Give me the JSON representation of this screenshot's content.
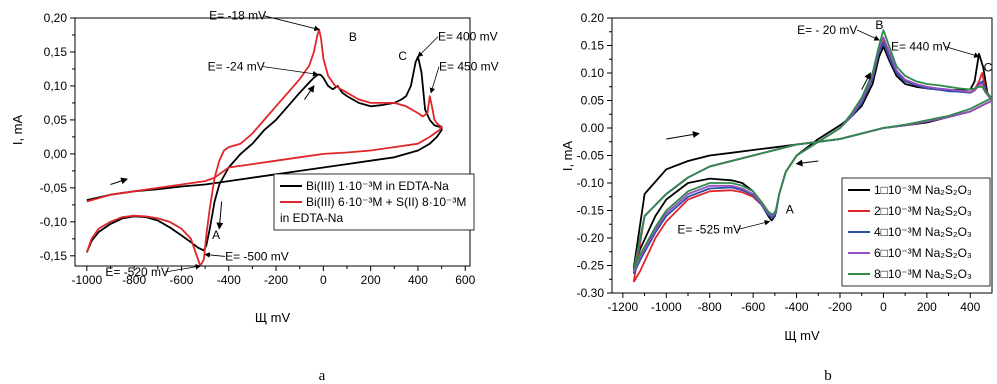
{
  "captions": [
    "a",
    "b"
  ],
  "chart_data": [
    {
      "type": "line",
      "xlabel": "Щ mV",
      "ylabel": "I, mA",
      "xlim": [
        -1050,
        620
      ],
      "ylim": [
        -0.165,
        0.2
      ],
      "xticks": [
        "-1000",
        "-800",
        "-600",
        "-400",
        "-200",
        "0",
        "200",
        "400",
        "600"
      ],
      "yticks": [
        "-0,15",
        "-0,10",
        "-0,05",
        "0,00",
        "0,05",
        "0,10",
        "0,15",
        "0,20"
      ],
      "legend_position": "lower-right",
      "legend": [
        {
          "text": "Bi(III) 1·10⁻³M in EDTA-Na",
          "color": "#000000"
        },
        {
          "text": "Bi(III) 6·10⁻³M + S(II) 8·10⁻³M",
          "text2": "in EDTA-Na",
          "color": "#e0262b"
        }
      ],
      "annotations": [
        {
          "text": "E= -18 mV",
          "x": -18,
          "y": 0.183
        },
        {
          "text": "B",
          "x": 40,
          "y": 0.178
        },
        {
          "text": "E= -24 mV",
          "x": -24,
          "y": 0.117
        },
        {
          "text": "E= 400 mV",
          "x": 400,
          "y": 0.143
        },
        {
          "text": "C",
          "x": 368,
          "y": 0.138
        },
        {
          "text": "E= 450 mV",
          "x": 455,
          "y": 0.09
        },
        {
          "text": "A",
          "x": -470,
          "y": -0.125
        },
        {
          "text": "E= -520 mV",
          "x": -520,
          "y": -0.165
        },
        {
          "text": "E= -500 mV",
          "x": -500,
          "y": -0.148
        }
      ],
      "series": [
        {
          "color": "#000000",
          "x": [
            -1000,
            -980,
            -950,
            -900,
            -850,
            -800,
            -750,
            -700,
            -650,
            -600,
            -560,
            -530,
            -505,
            -495,
            -480,
            -460,
            -440,
            -400,
            -350,
            -300,
            -250,
            -200,
            -150,
            -100,
            -60,
            -40,
            -30,
            -20,
            -10,
            0,
            20,
            40,
            60,
            80,
            100,
            150,
            200,
            250,
            300,
            330,
            350,
            370,
            390,
            400,
            415,
            430,
            450,
            470,
            490,
            500,
            500,
            480,
            450,
            400,
            300,
            200,
            100,
            0,
            -100,
            -200,
            -300,
            -400,
            -500,
            -600,
            -700,
            -800,
            -900,
            -1000
          ],
          "y": [
            -0.145,
            -0.128,
            -0.115,
            -0.103,
            -0.095,
            -0.092,
            -0.093,
            -0.098,
            -0.108,
            -0.12,
            -0.13,
            -0.138,
            -0.142,
            -0.135,
            -0.11,
            -0.07,
            -0.045,
            -0.02,
            0,
            0.015,
            0.035,
            0.05,
            0.07,
            0.09,
            0.105,
            0.112,
            0.115,
            0.117,
            0.116,
            0.112,
            0.1,
            0.095,
            0.1,
            0.09,
            0.085,
            0.075,
            0.07,
            0.072,
            0.075,
            0.08,
            0.085,
            0.1,
            0.135,
            0.143,
            0.12,
            0.065,
            0.05,
            0.042,
            0.04,
            0.04,
            0.035,
            0.025,
            0.015,
            0.005,
            -0.005,
            -0.01,
            -0.015,
            -0.02,
            -0.025,
            -0.03,
            -0.035,
            -0.04,
            -0.045,
            -0.048,
            -0.052,
            -0.055,
            -0.06,
            -0.068
          ]
        },
        {
          "color": "#e0262b",
          "x": [
            -1000,
            -980,
            -950,
            -900,
            -850,
            -800,
            -750,
            -700,
            -650,
            -600,
            -560,
            -540,
            -520,
            -505,
            -495,
            -480,
            -460,
            -440,
            -420,
            -400,
            -350,
            -300,
            -250,
            -200,
            -150,
            -100,
            -60,
            -40,
            -25,
            -18,
            -10,
            0,
            20,
            50,
            100,
            150,
            200,
            250,
            300,
            350,
            400,
            420,
            440,
            450,
            460,
            470,
            480,
            490,
            500,
            490,
            470,
            450,
            400,
            300,
            200,
            100,
            0,
            -100,
            -200,
            -300,
            -400,
            -440,
            -460,
            -500,
            -600,
            -700,
            -800,
            -900,
            -1000
          ],
          "y": [
            -0.145,
            -0.125,
            -0.11,
            -0.1,
            -0.093,
            -0.091,
            -0.092,
            -0.095,
            -0.1,
            -0.11,
            -0.125,
            -0.145,
            -0.165,
            -0.155,
            -0.12,
            -0.08,
            -0.035,
            -0.01,
            0.005,
            0.01,
            0.015,
            0.03,
            0.05,
            0.07,
            0.09,
            0.11,
            0.13,
            0.15,
            0.175,
            0.183,
            0.17,
            0.14,
            0.115,
            0.1,
            0.09,
            0.08,
            0.075,
            0.075,
            0.075,
            0.07,
            0.06,
            0.055,
            0.06,
            0.085,
            0.068,
            0.05,
            0.045,
            0.042,
            0.04,
            0.035,
            0.03,
            0.025,
            0.015,
            0.01,
            0.005,
            0.002,
            0,
            -0.005,
            -0.01,
            -0.015,
            -0.02,
            -0.03,
            -0.035,
            -0.04,
            -0.045,
            -0.05,
            -0.055,
            -0.06,
            -0.07
          ]
        }
      ]
    },
    {
      "type": "line",
      "xlabel": "Щ mV",
      "ylabel": "I, mA",
      "xlim": [
        -1250,
        500
      ],
      "ylim": [
        -0.3,
        0.2
      ],
      "xticks": [
        "-1200",
        "-1000",
        "-800",
        "-600",
        "-400",
        "-200",
        "0",
        "200",
        "400"
      ],
      "yticks": [
        "-0.30",
        "-0.25",
        "-0.20",
        "-0.15",
        "-0.10",
        "-0.05",
        "0.00",
        "0.05",
        "0.10",
        "0.15",
        "0.20"
      ],
      "legend_position": "lower-right",
      "legend": [
        {
          "text": "1□10⁻³M Na₂S₂O₃",
          "color": "#000000"
        },
        {
          "text": "2□10⁻³M Na₂S₂O₃",
          "color": "#e0262b"
        },
        {
          "text": "4□10⁻³M Na₂S₂O₃",
          "color": "#2a4fa8"
        },
        {
          "text": "6□10⁻³M Na₂S₂O₃",
          "color": "#9a4fc0"
        },
        {
          "text": "8□10⁻³M Na₂S₂O₃",
          "color": "#2e8b4a"
        }
      ],
      "annotations": [
        {
          "text": "E= - 20 mV",
          "x": -20,
          "y": 0.16
        },
        {
          "text": "B",
          "x": 0,
          "y": 0.18
        },
        {
          "text": "E= 440 mV",
          "x": 440,
          "y": 0.13
        },
        {
          "text": "C",
          "x": 480,
          "y": 0.11
        },
        {
          "text": "E= -525 mV",
          "x": -525,
          "y": -0.17
        },
        {
          "text": "A",
          "x": -450,
          "y": -0.155
        }
      ],
      "series": [
        {
          "color": "#000000",
          "x": [
            -1150,
            -1120,
            -1050,
            -1000,
            -900,
            -800,
            -700,
            -650,
            -600,
            -560,
            -530,
            -515,
            -500,
            -480,
            -450,
            -400,
            -300,
            -200,
            -150,
            -100,
            -50,
            -20,
            0,
            30,
            60,
            100,
            150,
            200,
            250,
            300,
            350,
            400,
            420,
            440,
            460,
            480,
            500,
            450,
            400,
            300,
            200,
            100,
            0,
            -100,
            -200,
            -300,
            -400,
            -500,
            -600,
            -700,
            -800,
            -900,
            -1000,
            -1100,
            -1150
          ],
          "y": [
            -0.255,
            -0.22,
            -0.16,
            -0.13,
            -0.1,
            -0.092,
            -0.095,
            -0.1,
            -0.115,
            -0.14,
            -0.16,
            -0.168,
            -0.16,
            -0.12,
            -0.08,
            -0.05,
            -0.02,
            0.005,
            0.02,
            0.04,
            0.08,
            0.13,
            0.148,
            0.12,
            0.095,
            0.08,
            0.075,
            0.072,
            0.07,
            0.068,
            0.07,
            0.07,
            0.085,
            0.135,
            0.11,
            0.06,
            0.05,
            0.04,
            0.03,
            0.02,
            0.01,
            0.005,
            0,
            -0.01,
            -0.02,
            -0.025,
            -0.03,
            -0.035,
            -0.04,
            -0.045,
            -0.05,
            -0.06,
            -0.075,
            -0.12,
            -0.255
          ]
        },
        {
          "color": "#e0262b",
          "x": [
            -1150,
            -1120,
            -1050,
            -1000,
            -900,
            -800,
            -700,
            -650,
            -600,
            -560,
            -530,
            -510,
            -495,
            -480,
            -450,
            -400,
            -300,
            -200,
            -150,
            -100,
            -50,
            -20,
            0,
            30,
            60,
            100,
            150,
            200,
            250,
            300,
            350,
            400,
            420,
            440,
            455,
            470,
            500,
            450,
            400,
            300,
            200,
            100,
            0,
            -100,
            -200,
            -300,
            -400,
            -500,
            -600,
            -700,
            -800,
            -900,
            -1000,
            -1100,
            -1150
          ],
          "y": [
            -0.28,
            -0.26,
            -0.2,
            -0.17,
            -0.13,
            -0.115,
            -0.113,
            -0.117,
            -0.125,
            -0.14,
            -0.155,
            -0.158,
            -0.15,
            -0.12,
            -0.08,
            -0.05,
            -0.025,
            0,
            0.02,
            0.045,
            0.09,
            0.14,
            0.16,
            0.13,
            0.1,
            0.085,
            0.078,
            0.072,
            0.07,
            0.068,
            0.068,
            0.065,
            0.07,
            0.085,
            0.1,
            0.07,
            0.05,
            0.04,
            0.03,
            0.02,
            0.012,
            0.005,
            0,
            -0.01,
            -0.02,
            -0.025,
            -0.03,
            -0.04,
            -0.05,
            -0.06,
            -0.07,
            -0.09,
            -0.12,
            -0.16,
            -0.28
          ]
        },
        {
          "color": "#2a4fa8",
          "x": [
            -1150,
            -1120,
            -1050,
            -1000,
            -900,
            -800,
            -700,
            -650,
            -600,
            -560,
            -530,
            -510,
            -495,
            -480,
            -450,
            -400,
            -300,
            -200,
            -150,
            -100,
            -50,
            -20,
            0,
            30,
            60,
            100,
            150,
            200,
            250,
            300,
            350,
            400,
            420,
            440,
            455,
            470,
            500,
            450,
            400,
            300,
            200,
            100,
            0,
            -100,
            -200,
            -300,
            -400,
            -500,
            -600,
            -700,
            -800,
            -900,
            -1000,
            -1100,
            -1150
          ],
          "y": [
            -0.265,
            -0.24,
            -0.19,
            -0.16,
            -0.125,
            -0.11,
            -0.108,
            -0.113,
            -0.122,
            -0.14,
            -0.158,
            -0.163,
            -0.155,
            -0.12,
            -0.08,
            -0.05,
            -0.025,
            0,
            0.02,
            0.045,
            0.09,
            0.14,
            0.155,
            0.125,
            0.1,
            0.085,
            0.078,
            0.072,
            0.07,
            0.067,
            0.066,
            0.064,
            0.068,
            0.08,
            0.085,
            0.068,
            0.05,
            0.04,
            0.03,
            0.02,
            0.012,
            0.005,
            0,
            -0.01,
            -0.02,
            -0.025,
            -0.03,
            -0.04,
            -0.05,
            -0.06,
            -0.07,
            -0.09,
            -0.12,
            -0.16,
            -0.265
          ]
        },
        {
          "color": "#9a4fc0",
          "x": [
            -1150,
            -1120,
            -1050,
            -1000,
            -900,
            -800,
            -700,
            -650,
            -600,
            -560,
            -530,
            -510,
            -495,
            -480,
            -450,
            -400,
            -300,
            -200,
            -150,
            -100,
            -50,
            -20,
            0,
            30,
            60,
            100,
            150,
            200,
            250,
            300,
            350,
            400,
            420,
            440,
            455,
            470,
            500,
            450,
            400,
            300,
            200,
            100,
            0,
            -100,
            -200,
            -300,
            -400,
            -500,
            -600,
            -700,
            -800,
            -900,
            -1000,
            -1100,
            -1150
          ],
          "y": [
            -0.262,
            -0.235,
            -0.185,
            -0.155,
            -0.12,
            -0.105,
            -0.105,
            -0.11,
            -0.12,
            -0.138,
            -0.155,
            -0.16,
            -0.152,
            -0.12,
            -0.08,
            -0.05,
            -0.025,
            0,
            0.022,
            0.05,
            0.095,
            0.145,
            0.165,
            0.135,
            0.105,
            0.088,
            0.08,
            0.075,
            0.072,
            0.07,
            0.068,
            0.065,
            0.068,
            0.078,
            0.08,
            0.065,
            0.05,
            0.04,
            0.03,
            0.02,
            0.012,
            0.005,
            0,
            -0.01,
            -0.02,
            -0.025,
            -0.03,
            -0.04,
            -0.05,
            -0.06,
            -0.07,
            -0.09,
            -0.12,
            -0.16,
            -0.262
          ]
        },
        {
          "color": "#2e8b4a",
          "x": [
            -1150,
            -1120,
            -1050,
            -1000,
            -900,
            -800,
            -700,
            -650,
            -600,
            -560,
            -530,
            -510,
            -495,
            -480,
            -450,
            -400,
            -300,
            -200,
            -150,
            -100,
            -50,
            -20,
            0,
            30,
            60,
            100,
            150,
            200,
            250,
            300,
            350,
            400,
            420,
            440,
            455,
            470,
            500,
            450,
            400,
            300,
            200,
            100,
            0,
            -100,
            -200,
            -300,
            -400,
            -500,
            -600,
            -700,
            -800,
            -900,
            -1000,
            -1100,
            -1150
          ],
          "y": [
            -0.258,
            -0.23,
            -0.18,
            -0.15,
            -0.115,
            -0.1,
            -0.1,
            -0.105,
            -0.115,
            -0.135,
            -0.152,
            -0.158,
            -0.15,
            -0.12,
            -0.08,
            -0.05,
            -0.025,
            0,
            0.025,
            0.055,
            0.1,
            0.15,
            0.178,
            0.145,
            0.112,
            0.095,
            0.085,
            0.08,
            0.078,
            0.075,
            0.072,
            0.07,
            0.072,
            0.075,
            0.075,
            0.065,
            0.055,
            0.045,
            0.035,
            0.022,
            0.014,
            0.006,
            0,
            -0.01,
            -0.02,
            -0.025,
            -0.03,
            -0.04,
            -0.05,
            -0.06,
            -0.07,
            -0.09,
            -0.12,
            -0.16,
            -0.258
          ]
        }
      ]
    }
  ]
}
